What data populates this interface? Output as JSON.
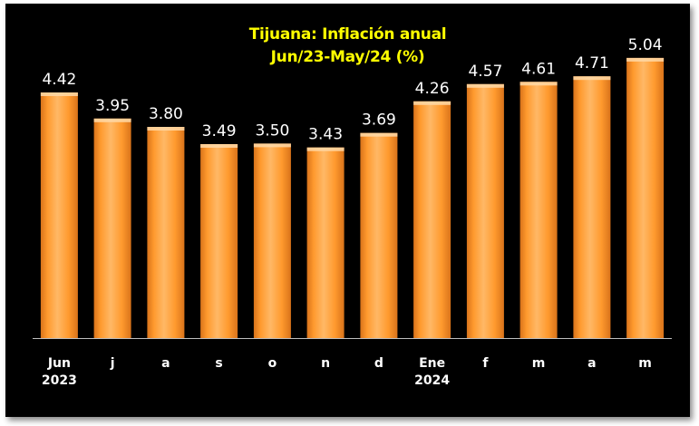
{
  "chart_data": {
    "type": "bar",
    "title": "Tijuana: Inflación anual",
    "subtitle": "Jun/23-May/24 (%)",
    "categories": [
      [
        "Jun",
        "2023"
      ],
      [
        "j"
      ],
      [
        "a"
      ],
      [
        "s"
      ],
      [
        "o"
      ],
      [
        "n"
      ],
      [
        "d"
      ],
      [
        "Ene",
        "2024"
      ],
      [
        "f"
      ],
      [
        "m"
      ],
      [
        "a"
      ],
      [
        "m"
      ]
    ],
    "values": [
      4.42,
      3.95,
      3.8,
      3.49,
      3.5,
      3.43,
      3.69,
      4.26,
      4.57,
      4.61,
      4.71,
      5.04
    ],
    "data_labels": [
      "4.42",
      "3.95",
      "3.80",
      "3.49",
      "3.50",
      "3.43",
      "3.69",
      "4.26",
      "4.57",
      "4.61",
      "4.71",
      "5.04"
    ],
    "ylim": [
      0,
      5.3
    ],
    "grid": false,
    "legend": "none",
    "xlabel": "",
    "ylabel": "",
    "colors": {
      "background": "#000000",
      "bar_light": "#ffb866",
      "bar_mid": "#ff9a2e",
      "bar_dark": "#d9731a",
      "title": "#ffff00",
      "text": "#ffffff",
      "axis": "#bfbfbf"
    }
  }
}
